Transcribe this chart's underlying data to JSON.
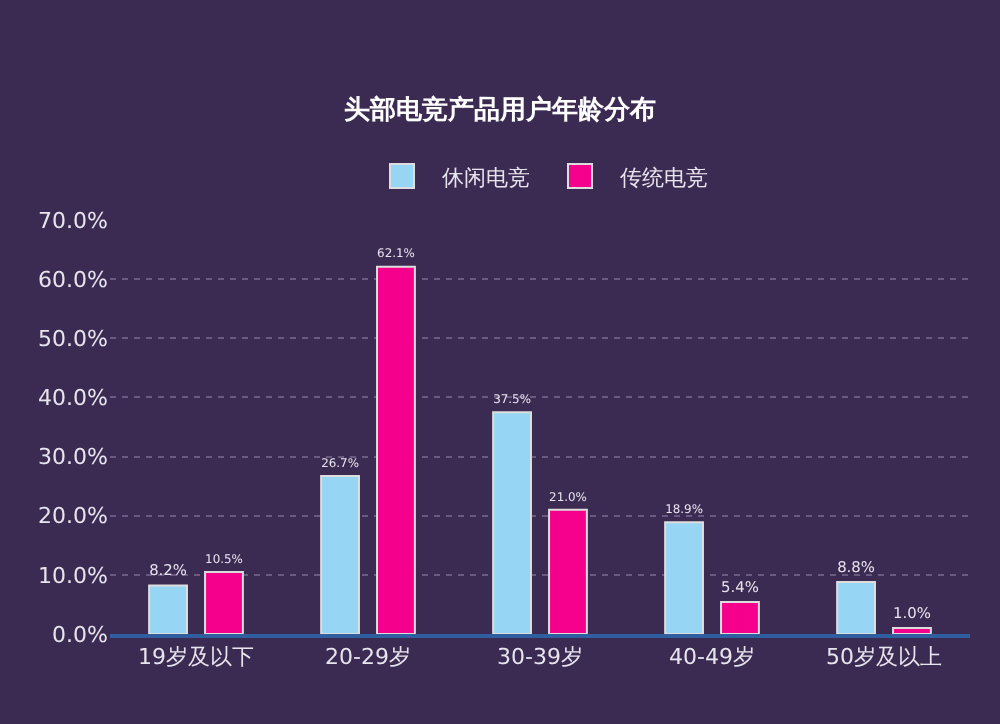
{
  "chart_data": {
    "type": "bar",
    "title": "头部电竞产品用户年龄分布",
    "categories": [
      "19岁及以下",
      "20-29岁",
      "30-39岁",
      "40-49岁",
      "50岁及以上"
    ],
    "series": [
      {
        "name": "休闲电竞",
        "color": "#96d6f4",
        "values": [
          8.2,
          26.7,
          37.5,
          18.9,
          8.8
        ],
        "value_labels": [
          "8.2%",
          "26.7%",
          "37.5%",
          "18.9%",
          "8.8%"
        ]
      },
      {
        "name": "传统电竞",
        "color": "#f5008c",
        "values": [
          10.5,
          62.1,
          21.0,
          5.4,
          1.0
        ],
        "value_labels": [
          "10.5%",
          "62.1%",
          "21.0%",
          "5.4%",
          "1.0%"
        ]
      }
    ],
    "ylim": [
      0,
      70
    ],
    "yticks": [
      {
        "value": 0,
        "label": "0.0%"
      },
      {
        "value": 10,
        "label": "10.0%"
      },
      {
        "value": 20,
        "label": "20.0%"
      },
      {
        "value": 30,
        "label": "30.0%"
      },
      {
        "value": 40,
        "label": "40.0%"
      },
      {
        "value": 50,
        "label": "50.0%"
      },
      {
        "value": 60,
        "label": "60.0%"
      },
      {
        "value": 70,
        "label": "70.0%"
      }
    ],
    "grid": "y",
    "legend": "top"
  }
}
